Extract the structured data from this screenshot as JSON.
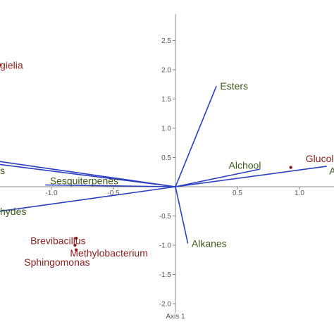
{
  "chart_data": {
    "type": "scatter",
    "subtype": "biplot",
    "title": "",
    "xlabel": "Axis 1",
    "ylabel": "",
    "xlim": [
      -1.45,
      1.35
    ],
    "ylim": [
      -2.15,
      2.95
    ],
    "grid": false,
    "legend": "none",
    "x_ticks": [
      -1.0,
      -0.5,
      0.5,
      1.0
    ],
    "x_tick_labels": [
      "-1.0",
      "-0.5",
      "0.5",
      "1.0"
    ],
    "y_ticks": [
      2.5,
      2.0,
      1.5,
      1.0,
      0.5,
      -0.5,
      -1.0,
      -1.5,
      -2.0
    ],
    "y_tick_labels": [
      "2.5",
      "2.0",
      "1.5",
      "1.0",
      "0.5",
      "-0.5",
      "-1.0",
      "-1.5",
      "-2.0"
    ],
    "vectors": [
      {
        "label": "Esters",
        "x": 0.33,
        "y": 1.72,
        "label_x": 0.36,
        "label_y": 1.72,
        "anchor": "start"
      },
      {
        "label": "Alchool",
        "x": 0.68,
        "y": 0.3,
        "label_x": 0.69,
        "label_y": 0.37,
        "anchor": "end"
      },
      {
        "label": "Ac",
        "x": 1.22,
        "y": 0.35,
        "label_x": 1.24,
        "label_y": 0.27,
        "anchor": "start"
      },
      {
        "label": "Alkanes",
        "x": 0.1,
        "y": -0.97,
        "label_x": 0.13,
        "label_y": -0.97,
        "anchor": "start"
      },
      {
        "label": "Sesquiterpenes",
        "x": -1.05,
        "y": 0.03,
        "label_x": -0.46,
        "label_y": 0.1,
        "anchor": "end"
      },
      {
        "label": "s",
        "x": -1.45,
        "y": 0.38,
        "label_x": -1.43,
        "label_y": 0.28,
        "anchor": "start"
      },
      {
        "label": "",
        "x": -1.45,
        "y": 0.43,
        "label_x": -1.43,
        "label_y": 0.43,
        "anchor": "start"
      },
      {
        "label": "hydes",
        "x": -1.45,
        "y": -0.42,
        "label_x": -1.45,
        "label_y": -0.42,
        "anchor": "start"
      }
    ],
    "samples": [
      {
        "label": "Glucol",
        "x": 0.93,
        "y": 0.33,
        "label_x": 1.05,
        "label_y": 0.48,
        "anchor": "start"
      },
      {
        "label": "gielia",
        "x": -1.45,
        "y": 2.08,
        "label_x": -1.45,
        "label_y": 2.08,
        "anchor": "start"
      },
      {
        "label": "Brevibacillus",
        "x": -0.8,
        "y": -0.88,
        "label_x": -1.17,
        "label_y": -0.92,
        "anchor": "start"
      },
      {
        "label": "Methylobacterium",
        "x": -0.81,
        "y": -1.0,
        "label_x": -0.85,
        "label_y": -1.13,
        "anchor": "start"
      },
      {
        "label": "Sphingomonas",
        "x": -0.8,
        "y": -1.08,
        "label_x": -1.22,
        "label_y": -1.29,
        "anchor": "start"
      }
    ],
    "colors": {
      "vector": "#2b3fbf",
      "axis": "#888888",
      "variable_text": "#3a5a18",
      "sample_text": "#8b2020",
      "sample_point": "#8b2020"
    }
  }
}
